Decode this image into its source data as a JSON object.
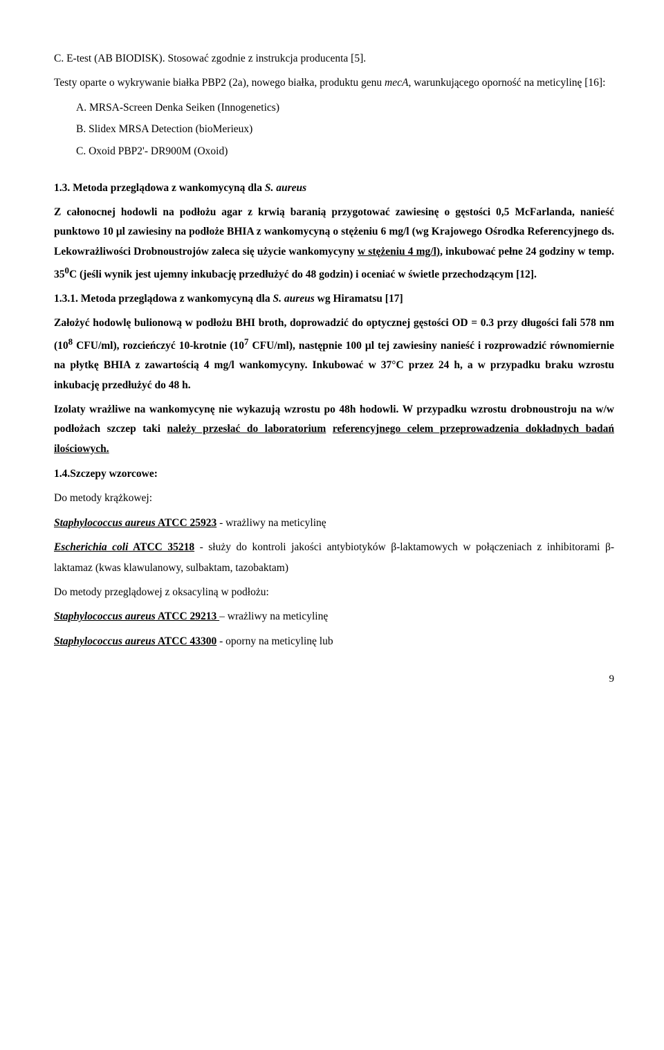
{
  "lines": {
    "l1_pre": "C. E-test (AB BIODISK). Stosować zgodnie z instrukcja producenta [5].",
    "l2_pre": "Testy oparte o wykrywanie białka PBP2 (2a), nowego białka, produktu genu ",
    "l2_em": "mecA",
    "l2_post": ", warunkującego oporność na meticylinę [16]:",
    "l3": "A. MRSA-Screen Denka Seiken (Innogenetics)",
    "l4": "B. Slidex MRSA Detection (bioMerieux)",
    "l5": "C. Oxoid PBP2'- DR900M (Oxoid)",
    "h1_pre": "1.3. Metoda przeglądowa z wankomycyną dla ",
    "h1_em": "S. aureus",
    "p1_a": "Z całonocnej hodowli na podłożu agar z krwią baranią przygotować zawiesinę o gęstości 0,5 McFarlanda, nanieść punktowo 10 μl zawiesiny na podłoże BHIA z wankomycyną o stężeniu 6 mg/l (wg Krajowego Ośrodka Referencyjnego ds. Lekowrażliwości Drobnoustrojów zaleca się użycie wankomycyny ",
    "p1_u": "w stężeniu 4 mg/l)",
    "p1_b": ", inkubować pełne 24 godziny w temp. 35",
    "p1_sup": "0",
    "p1_c": "C (jeśli wynik jest ujemny inkubację przedłużyć do 48 godzin) i oceniać w świetle przechodzącym [12].",
    "h2_pre": "1.3.1. Metoda przeglądowa z wankomycyną dla ",
    "h2_em": "S. aureus",
    "h2_post": " wg Hiramatsu [17]",
    "p2_a": "Założyć hodowlę bulionową w podłożu BHI broth, doprowadzić do optycznej gęstości OD = 0.3 przy długości fali 578 nm (10",
    "p2_s1": "8",
    "p2_b": " CFU/ml), rozcieńczyć 10-krotnie (10",
    "p2_s2": "7",
    "p2_c": " CFU/ml), następnie 100 μl tej zawiesiny nanieść i rozprowadzić równomiernie na płytkę BHIA z zawartością 4 mg/l wankomycyny. Inkubować w 37°C przez 24 h, a w przypadku braku wzrostu inkubację przedłużyć do 48 h.",
    "p3_a": "Izolaty wrażliwe na wankomycynę nie wykazują wzrostu po 48h hodowli. W przypadku wzrostu drobnoustroju na w/w podłożach szczep taki ",
    "p3_u1": "należy przesłać do laboratorium",
    "p3_sp": " ",
    "p3_u2": "referencyjnego celem przeprowadzenia dokładnych badań ilościowych.",
    "h3": "1.4.Szczepy wzorcowe:",
    "l6": "Do metody krążkowej:",
    "l7_u": "Staphylococcus aureus",
    "l7_u2": " ATCC 25923",
    "l7_rest": " - wrażliwy na meticylinę",
    "l8_u": "Escherichia coli",
    "l8_u2": " ATCC 35218",
    "l8_rest": " - służy do kontroli jakości antybiotyków β-laktamowych w połączeniach z inhibitorami β-laktamaz (kwas klawulanowy, sulbaktam, tazobaktam)",
    "l9": "Do metody przeglądowej z oksacyliną w podłożu:",
    "l10_u": "Staphylococcus aureus",
    "l10_u2": " ATCC 29213 ",
    "l10_rest": "– wrażliwy na meticylinę",
    "l11_u": "Staphylococcus aureus",
    "l11_u2": " ATCC 43300",
    "l11_rest": " - oporny na meticylinę lub",
    "page": "9"
  }
}
